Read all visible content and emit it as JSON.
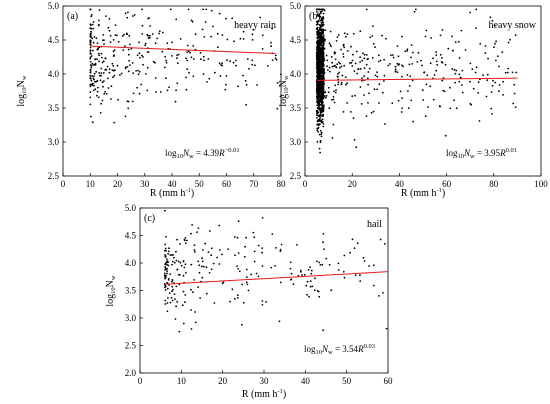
{
  "chart_data": [
    {
      "panel": "(a)",
      "type": "scatter",
      "annotation": "heavy rain",
      "xlabel": "R (mm h",
      "xlabel_sup": "-1",
      "xlabel_close": ")",
      "ylabel_main": "log",
      "ylabel_sub": "10",
      "ylabel_var": "N",
      "ylabel_var_sub": "w",
      "xlim": [
        0,
        80
      ],
      "ylim": [
        2.5,
        5.0
      ],
      "xticks": [
        "0",
        "10",
        "20",
        "30",
        "40",
        "50",
        "60",
        "70",
        "80"
      ],
      "yticks": [
        "2.5",
        "3.0",
        "3.5",
        "4.0",
        "4.5",
        "5.0"
      ],
      "fit": {
        "a": 4.39,
        "b": -0.01,
        "x_range": [
          10,
          78
        ],
        "color": "#e8161b"
      },
      "equation": {
        "lhs": "log",
        "lhs_sub": "10",
        "var": "N",
        "var_sub": "w",
        "eq": " = 4.39",
        "R": "R",
        "exp": "−0.01"
      },
      "points_note": "~360 points, R mostly 10–30 mm/h",
      "generator": {
        "n": 360,
        "x_min": 10,
        "x_max": 80,
        "x_shape": "decay",
        "y_mean": 4.25,
        "y_sd": 0.38,
        "seed": 11
      }
    },
    {
      "panel": "(b)",
      "type": "scatter",
      "annotation": "heavy snow",
      "xlabel": "R (mm h",
      "xlabel_sup": "-1",
      "xlabel_close": ")",
      "ylabel_main": "log",
      "ylabel_sub": "10",
      "ylabel_var": "N",
      "ylabel_var_sub": "w",
      "xlim": [
        0,
        100
      ],
      "ylim": [
        2.5,
        5.0
      ],
      "xticks": [
        "0",
        "20",
        "40",
        "60",
        "80",
        "100"
      ],
      "yticks": [
        "2.5",
        "3.0",
        "3.5",
        "4.0",
        "4.5",
        "5.0"
      ],
      "fit": {
        "a": 3.95,
        "b": 0.01,
        "x_range": [
          5,
          90
        ],
        "color": "#e8161b"
      },
      "equation": {
        "lhs": "log",
        "lhs_sub": "10",
        "var": "N",
        "var_sub": "w",
        "eq": " = 3.95",
        "R": "R",
        "exp": "0.01"
      },
      "points_note": "~1500 points, dense column at R≈5–8 mm/h",
      "generator": {
        "n": 1500,
        "x_min": 5,
        "x_max": 90,
        "x_shape": "snow",
        "y_mean": 4.05,
        "y_sd": 0.38,
        "seed": 23
      }
    },
    {
      "panel": "(c)",
      "type": "scatter",
      "annotation": "hail",
      "xlabel": "R (mm h",
      "xlabel_sup": "-1",
      "xlabel_close": ")",
      "ylabel_main": "log",
      "ylabel_sub": "10",
      "ylabel_var": "N",
      "ylabel_var_sub": "w",
      "xlim": [
        0,
        60
      ],
      "ylim": [
        2.0,
        5.0
      ],
      "xticks": [
        "0",
        "10",
        "20",
        "30",
        "40",
        "50",
        "60"
      ],
      "yticks": [
        "2.0",
        "2.5",
        "3.0",
        "3.5",
        "4.0",
        "4.5",
        "5.0"
      ],
      "fit": {
        "a": 3.54,
        "b": 0.03,
        "x_range": [
          6,
          60
        ],
        "color": "#e8161b"
      },
      "equation": {
        "lhs": "log",
        "lhs_sub": "10",
        "var": "N",
        "var_sub": "w",
        "eq": " = 3.54",
        "R": "R",
        "exp": "0.03"
      },
      "points_note": "~260 points, R mostly 6–25 mm/h",
      "generator": {
        "n": 260,
        "x_min": 6,
        "x_max": 60,
        "x_shape": "decay",
        "y_mean": 3.8,
        "y_sd": 0.42,
        "seed": 37
      }
    }
  ]
}
